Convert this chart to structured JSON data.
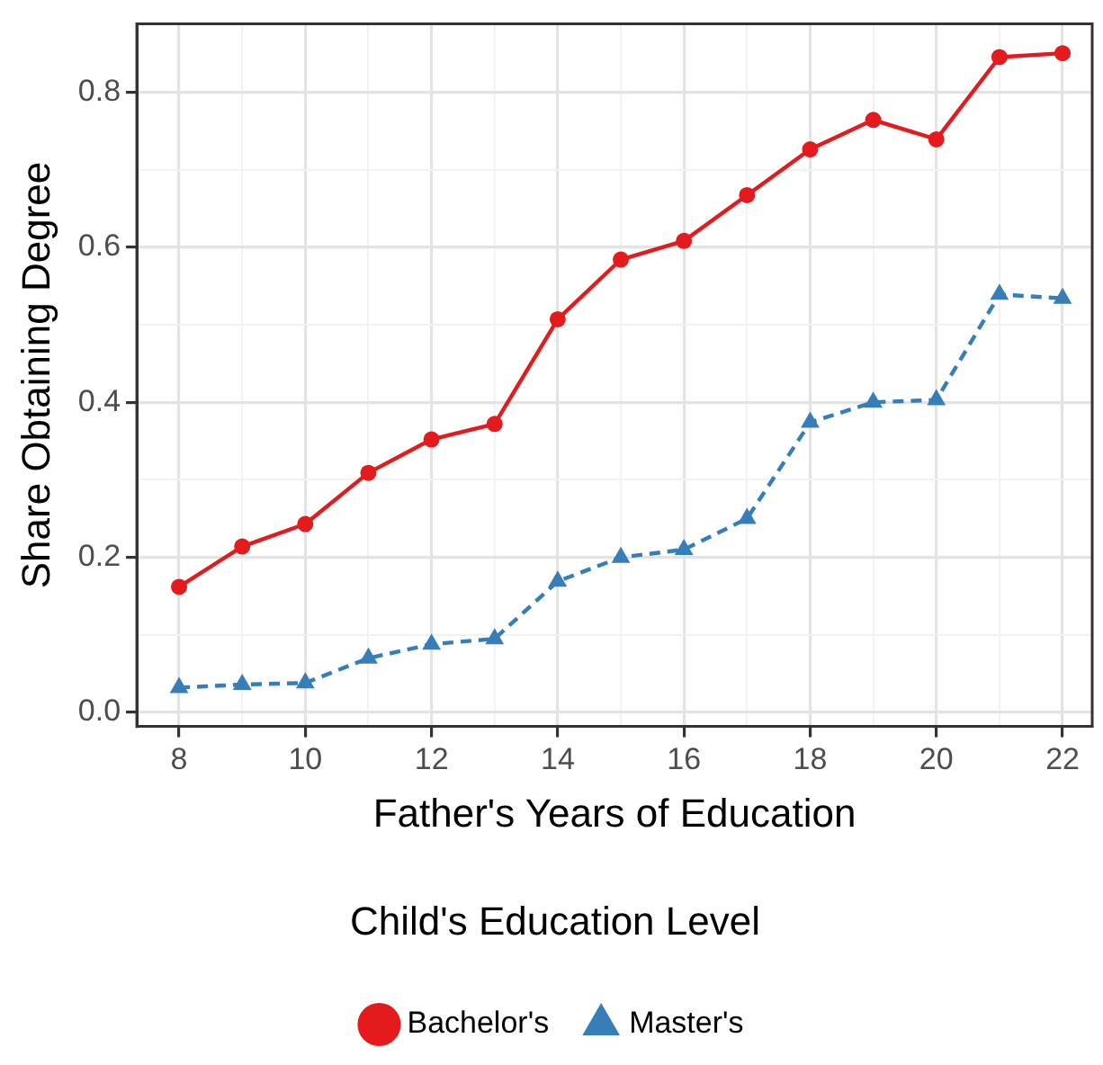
{
  "chart_data": {
    "type": "line",
    "xlabel": "Father's Years of Education",
    "ylabel": "Share Obtaining Degree",
    "legend_title": "Child's Education Level",
    "legend": "bottom",
    "grid": true,
    "x": [
      8,
      9,
      10,
      11,
      12,
      13,
      14,
      15,
      16,
      17,
      18,
      19,
      20,
      21,
      22
    ],
    "xlim": [
      7.33,
      22.47
    ],
    "xticks": [
      8,
      {
        "value": 9,
        "label": null
      },
      10,
      {
        "value": 11,
        "label": null
      },
      12,
      {
        "value": 13,
        "label": null
      },
      14,
      {
        "value": 15,
        "label": null
      },
      16,
      {
        "value": 17,
        "label": null
      },
      18,
      {
        "value": 19,
        "label": null
      },
      20,
      {
        "value": 21,
        "label": null
      },
      22
    ],
    "ylim": [
      -0.018,
      0.888
    ],
    "yticks": [
      {
        "value": 0,
        "label": "0.0"
      },
      {
        "value": 0.1,
        "label": null
      },
      0.2,
      {
        "value": 0.3,
        "label": null
      },
      0.4,
      {
        "value": 0.5,
        "label": null
      },
      0.6,
      {
        "value": 0.7,
        "label": null
      },
      0.8
    ],
    "series": [
      {
        "name": "Bachelor's",
        "color": "#e41a1c",
        "marker": "circle",
        "line_style": "solid",
        "values": [
          0.162,
          0.214,
          0.243,
          0.309,
          0.352,
          0.372,
          0.507,
          0.584,
          0.608,
          0.667,
          0.726,
          0.764,
          0.739,
          0.845,
          0.85
        ]
      },
      {
        "name": "Master's",
        "color": "#377eb8",
        "marker": "triangle",
        "line_style": "dashed",
        "values": [
          0.032,
          0.036,
          0.038,
          0.07,
          0.088,
          0.095,
          0.169,
          0.2,
          0.21,
          0.25,
          0.374,
          0.4,
          0.403,
          0.539,
          0.534
        ]
      }
    ]
  }
}
